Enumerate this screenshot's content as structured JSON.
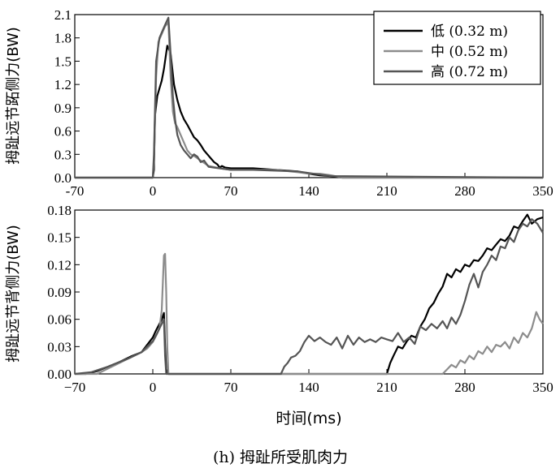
{
  "caption": "(h) 拇趾所受肌肉力",
  "chart_data": [
    {
      "type": "line",
      "title": "",
      "ylabel": "拇趾远节跖侧力(BW)",
      "xlabel": "",
      "xlim": [
        -70,
        350
      ],
      "ylim": [
        0,
        2.1
      ],
      "xticks": [
        "-70",
        "0",
        "70",
        "140",
        "210",
        "280",
        "350"
      ],
      "yticks": [
        "0.0",
        "0.3",
        "0.6",
        "0.9",
        "1.2",
        "1.5",
        "1.8",
        "2.1"
      ],
      "legend_position": "top-right",
      "series": [
        {
          "name": "低 (0.32 m)",
          "color": "#000000",
          "x": [
            -70,
            0,
            1,
            2,
            4,
            6,
            8,
            10,
            13,
            16,
            19,
            22,
            25,
            28,
            31,
            34,
            37,
            40,
            43,
            46,
            49,
            52,
            55,
            58,
            60,
            62,
            65,
            70,
            90,
            110,
            130,
            140,
            150,
            160,
            170,
            200,
            350
          ],
          "y": [
            0,
            0,
            0.1,
            0.8,
            1.05,
            1.15,
            1.25,
            1.4,
            1.7,
            1.6,
            1.2,
            1.0,
            0.85,
            0.75,
            0.68,
            0.6,
            0.52,
            0.48,
            0.42,
            0.35,
            0.3,
            0.25,
            0.2,
            0.17,
            0.13,
            0.15,
            0.13,
            0.12,
            0.12,
            0.1,
            0.08,
            0.05,
            0.03,
            0.02,
            0,
            0,
            0
          ]
        },
        {
          "name": "中 (0.52 m)",
          "color": "#8c8c8c",
          "x": [
            -70,
            0,
            1,
            3,
            5,
            8,
            11,
            14,
            16,
            18,
            20,
            22,
            25,
            28,
            31,
            34,
            37,
            40,
            45,
            50,
            60,
            70,
            90,
            110,
            130,
            140,
            150,
            160,
            170,
            350
          ],
          "y": [
            0,
            0,
            0.2,
            1.3,
            1.75,
            1.85,
            1.95,
            2.0,
            1.3,
            0.85,
            0.7,
            0.65,
            0.55,
            0.45,
            0.35,
            0.3,
            0.28,
            0.25,
            0.2,
            0.15,
            0.12,
            0.1,
            0.1,
            0.1,
            0.07,
            0.05,
            0.05,
            0.03,
            0,
            0
          ]
        },
        {
          "name": "高 (0.72 m)",
          "color": "#555555",
          "x": [
            -70,
            0,
            1,
            3,
            6,
            9,
            12,
            14,
            16,
            18,
            20,
            22,
            25,
            28,
            31,
            34,
            37,
            40,
            43,
            46,
            50,
            55,
            60,
            70,
            90,
            110,
            130,
            140,
            150,
            160,
            350
          ],
          "y": [
            0,
            0,
            0.3,
            1.5,
            1.8,
            1.9,
            2.0,
            2.06,
            1.6,
            1.05,
            0.75,
            0.55,
            0.42,
            0.35,
            0.3,
            0.25,
            0.3,
            0.27,
            0.2,
            0.22,
            0.14,
            0.13,
            0.12,
            0.1,
            0.1,
            0.09,
            0.08,
            0.06,
            0.04,
            0.02,
            0
          ]
        }
      ]
    },
    {
      "type": "line",
      "title": "",
      "ylabel": "拇趾远节背侧力(BW)",
      "xlabel": "时间(ms)",
      "xlim": [
        -70,
        350
      ],
      "ylim": [
        0,
        0.18
      ],
      "xticks": [
        "−70",
        "0",
        "70",
        "140",
        "210",
        "280",
        "350"
      ],
      "yticks": [
        "0.00",
        "0.03",
        "0.06",
        "0.09",
        "0.12",
        "0.15",
        "0.18"
      ],
      "series": [
        {
          "name": "低 (0.32 m)",
          "color": "#000000",
          "x": [
            -70,
            -60,
            -50,
            -40,
            -30,
            -20,
            -10,
            -5,
            0,
            3,
            6,
            8,
            10,
            11,
            12,
            14,
            210,
            213,
            216,
            220,
            224,
            228,
            232,
            236,
            240,
            244,
            248,
            252,
            256,
            260,
            264,
            268,
            272,
            276,
            280,
            284,
            288,
            292,
            296,
            300,
            304,
            308,
            312,
            316,
            320,
            324,
            328,
            332,
            336,
            340,
            345,
            350
          ],
          "y": [
            0,
            0,
            0.003,
            0.008,
            0.013,
            0.019,
            0.024,
            0.032,
            0.04,
            0.048,
            0.055,
            0.06,
            0.067,
            0.03,
            0.005,
            0,
            0,
            0.012,
            0.02,
            0.03,
            0.028,
            0.036,
            0.042,
            0.04,
            0.052,
            0.06,
            0.072,
            0.078,
            0.088,
            0.096,
            0.11,
            0.106,
            0.115,
            0.112,
            0.12,
            0.118,
            0.125,
            0.124,
            0.13,
            0.138,
            0.136,
            0.142,
            0.148,
            0.146,
            0.152,
            0.162,
            0.16,
            0.168,
            0.175,
            0.165,
            0.17,
            0.172
          ]
        },
        {
          "name": "中 (0.52 m)",
          "color": "#8c8c8c",
          "x": [
            -70,
            -50,
            -40,
            -30,
            -20,
            -10,
            -5,
            0,
            3,
            6,
            8,
            10,
            11,
            12,
            13,
            14,
            260,
            264,
            268,
            272,
            276,
            280,
            284,
            288,
            292,
            296,
            300,
            304,
            308,
            312,
            316,
            320,
            324,
            328,
            332,
            336,
            340,
            344,
            347,
            350
          ],
          "y": [
            0,
            0,
            0.006,
            0.012,
            0.018,
            0.024,
            0.028,
            0.035,
            0.042,
            0.05,
            0.07,
            0.13,
            0.132,
            0.09,
            0.03,
            0,
            0,
            0.005,
            0.01,
            0.007,
            0.015,
            0.012,
            0.02,
            0.016,
            0.025,
            0.022,
            0.03,
            0.024,
            0.032,
            0.03,
            0.035,
            0.028,
            0.04,
            0.034,
            0.045,
            0.04,
            0.05,
            0.068,
            0.06,
            0.055
          ]
        },
        {
          "name": "高 (0.72 m)",
          "color": "#555555",
          "x": [
            -70,
            -55,
            -40,
            -30,
            -20,
            -10,
            -5,
            0,
            4,
            6,
            8,
            10,
            11,
            12,
            115,
            118,
            121,
            124,
            128,
            132,
            136,
            140,
            145,
            150,
            155,
            160,
            165,
            170,
            175,
            180,
            185,
            190,
            195,
            200,
            205,
            210,
            215,
            220,
            225,
            230,
            235,
            240,
            245,
            250,
            255,
            260,
            264,
            268,
            272,
            276,
            280,
            284,
            288,
            292,
            296,
            300,
            304,
            308,
            312,
            316,
            320,
            324,
            328,
            332,
            336,
            340,
            345,
            350
          ],
          "y": [
            0,
            0.002,
            0.008,
            0.013,
            0.018,
            0.024,
            0.03,
            0.036,
            0.045,
            0.05,
            0.055,
            0.06,
            0.02,
            0,
            0,
            0.008,
            0.012,
            0.018,
            0.02,
            0.025,
            0.035,
            0.042,
            0.036,
            0.04,
            0.035,
            0.032,
            0.04,
            0.028,
            0.042,
            0.032,
            0.04,
            0.035,
            0.038,
            0.035,
            0.04,
            0.038,
            0.036,
            0.045,
            0.035,
            0.04,
            0.033,
            0.052,
            0.048,
            0.055,
            0.05,
            0.058,
            0.05,
            0.062,
            0.055,
            0.065,
            0.08,
            0.098,
            0.11,
            0.095,
            0.112,
            0.12,
            0.13,
            0.125,
            0.14,
            0.138,
            0.15,
            0.145,
            0.158,
            0.165,
            0.162,
            0.17,
            0.165,
            0.155
          ]
        }
      ]
    }
  ]
}
